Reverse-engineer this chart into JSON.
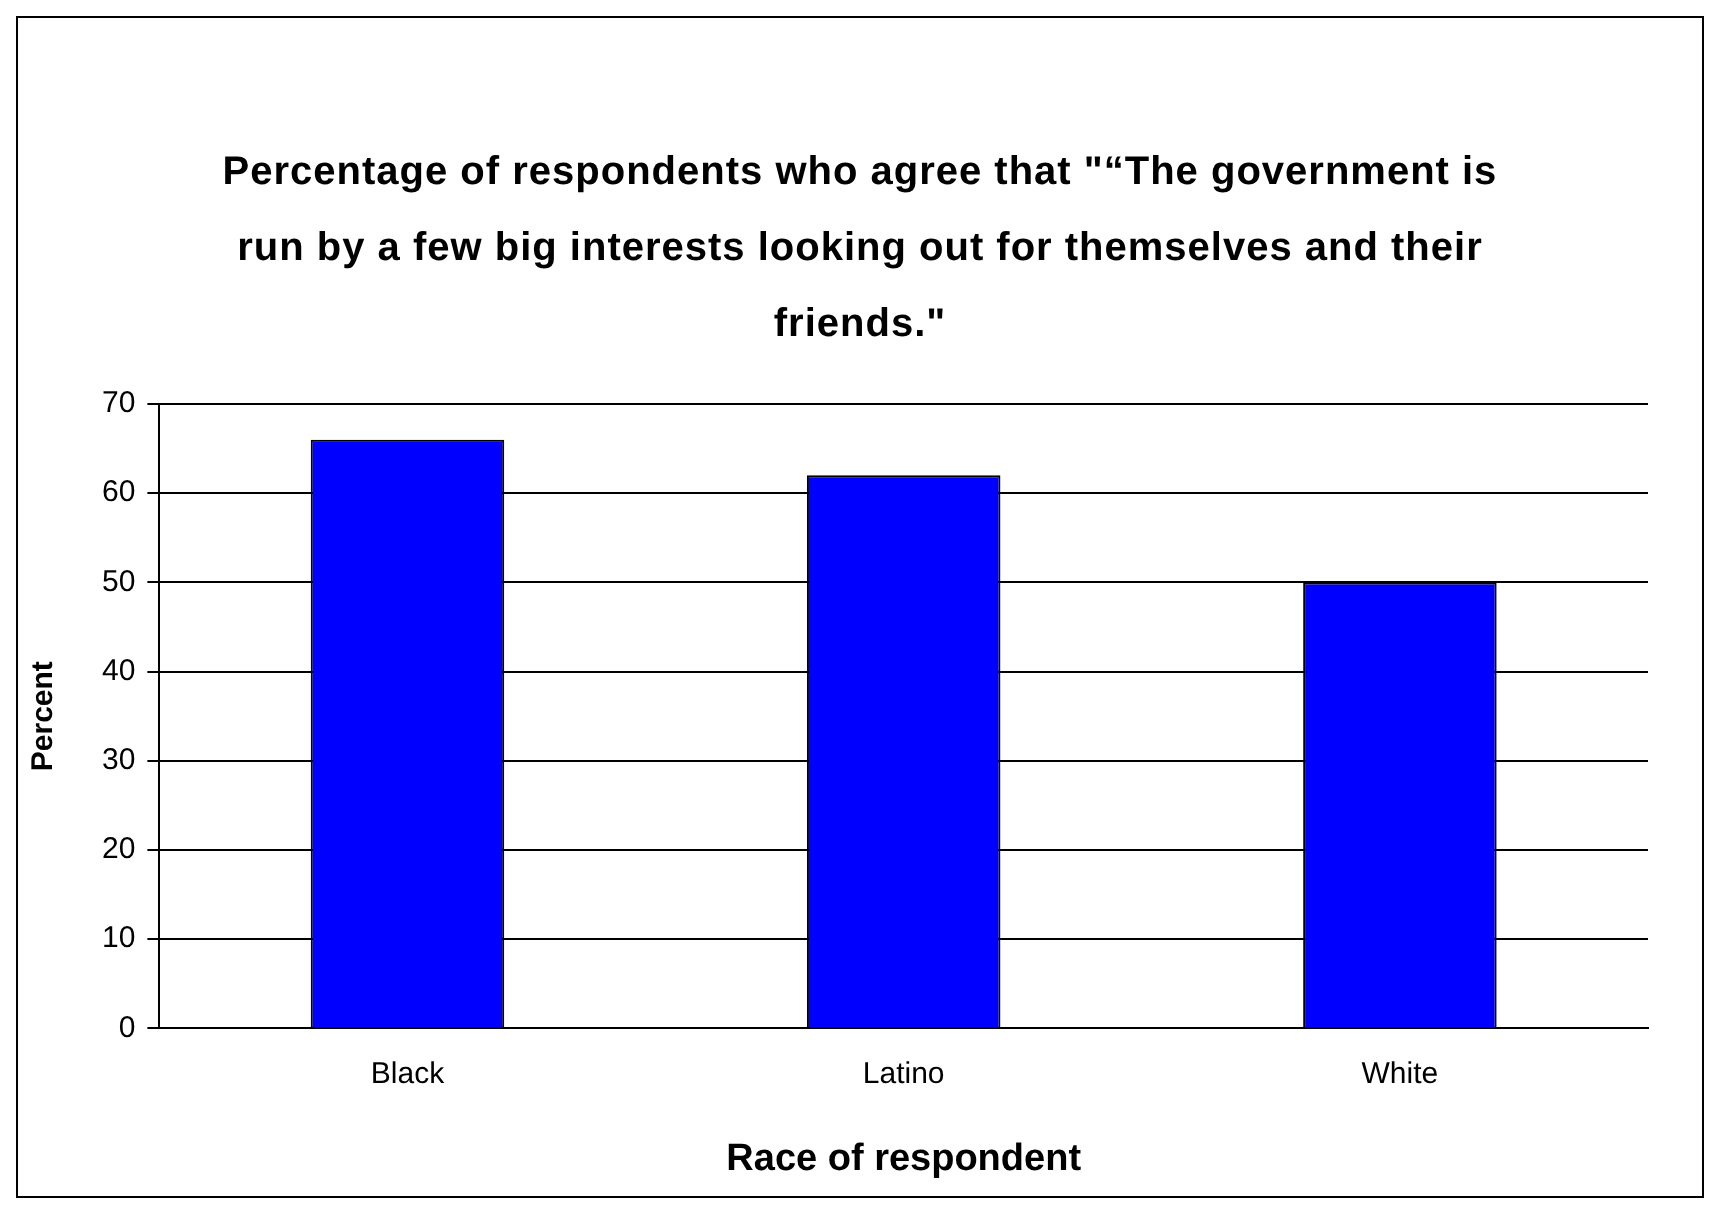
{
  "chart_data": {
    "type": "bar",
    "title": "Percentage of respondents who agree that \"“The government is run by a few big interests looking out for themselves and their friends.\"",
    "xlabel": "Race of respondent",
    "ylabel": "Percent",
    "categories": [
      "Black",
      "Latino",
      "White"
    ],
    "values": [
      66,
      62,
      50
    ],
    "color": "#0000ff",
    "ylim": [
      0,
      70
    ],
    "yticks": [
      0,
      10,
      20,
      30,
      40,
      50,
      60,
      70
    ],
    "grid": "y",
    "legend": false
  }
}
